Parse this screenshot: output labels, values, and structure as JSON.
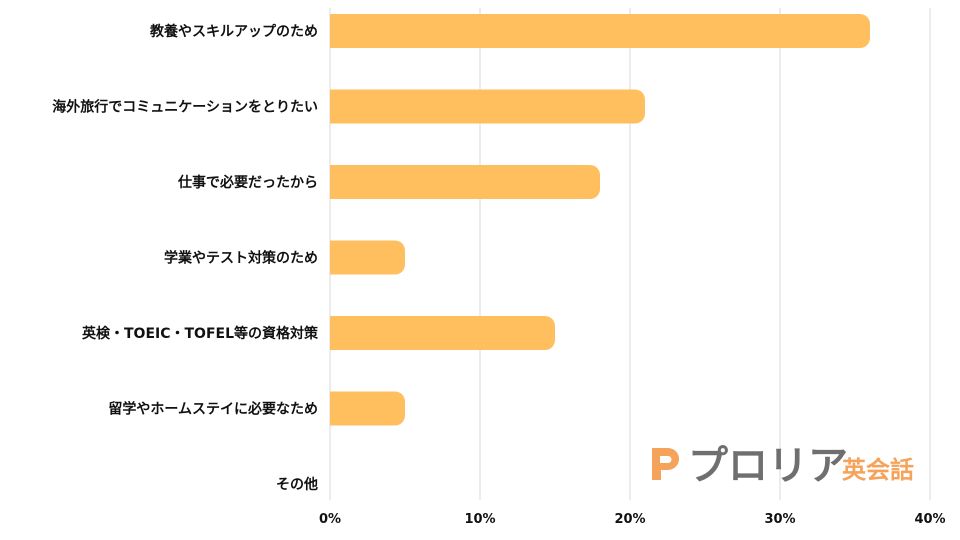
{
  "chart_data": {
    "type": "bar",
    "orientation": "horizontal",
    "categories": [
      "教養やスキルアップのため",
      "海外旅行でコミュニケーションをとりたい",
      "仕事で必要だったから",
      "学業やテスト対策のため",
      "英検・TOEIC・TOFEL等の資格対策",
      "留学やホームステイに必要なため",
      "その他"
    ],
    "values": [
      36,
      21,
      18,
      5,
      15,
      5,
      0
    ],
    "xlim": [
      0,
      40
    ],
    "ticks": [
      0,
      10,
      20,
      30,
      40
    ],
    "tick_labels": [
      "0%",
      "10%",
      "20%",
      "30%",
      "40%"
    ],
    "title": "",
    "xlabel": "",
    "ylabel": "",
    "grid": "vertical",
    "bar_color": "#FFBF5E",
    "grid_color": "#D9D9D9"
  },
  "logo": {
    "brand": "プロリア",
    "sub": "英会話",
    "brand_color": "#6F6F6F",
    "accent_color": "#F5A35A"
  }
}
